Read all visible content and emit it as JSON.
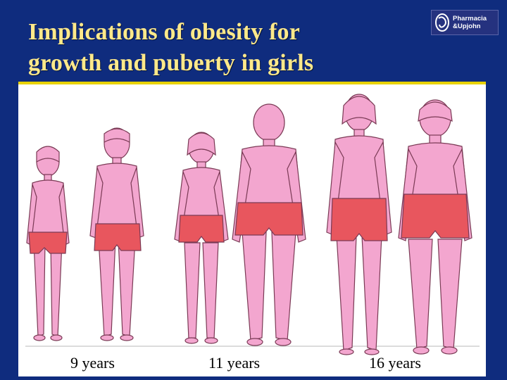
{
  "slide": {
    "title_line1": "Implications of obesity for",
    "title_line2": "growth and puberty in girls",
    "logo_line1": "Pharmacia",
    "logo_line2": "&Upjohn"
  },
  "labels": {
    "age_9": "9 years",
    "age_11": "11 years",
    "age_16": "16 years"
  },
  "colors": {
    "background": "#0f2c7e",
    "title": "#ffe98a",
    "accent_rule": "#e8d200",
    "skin": "#f3a6cf",
    "garment": "#e8565e",
    "outline": "#7a3a55"
  }
}
